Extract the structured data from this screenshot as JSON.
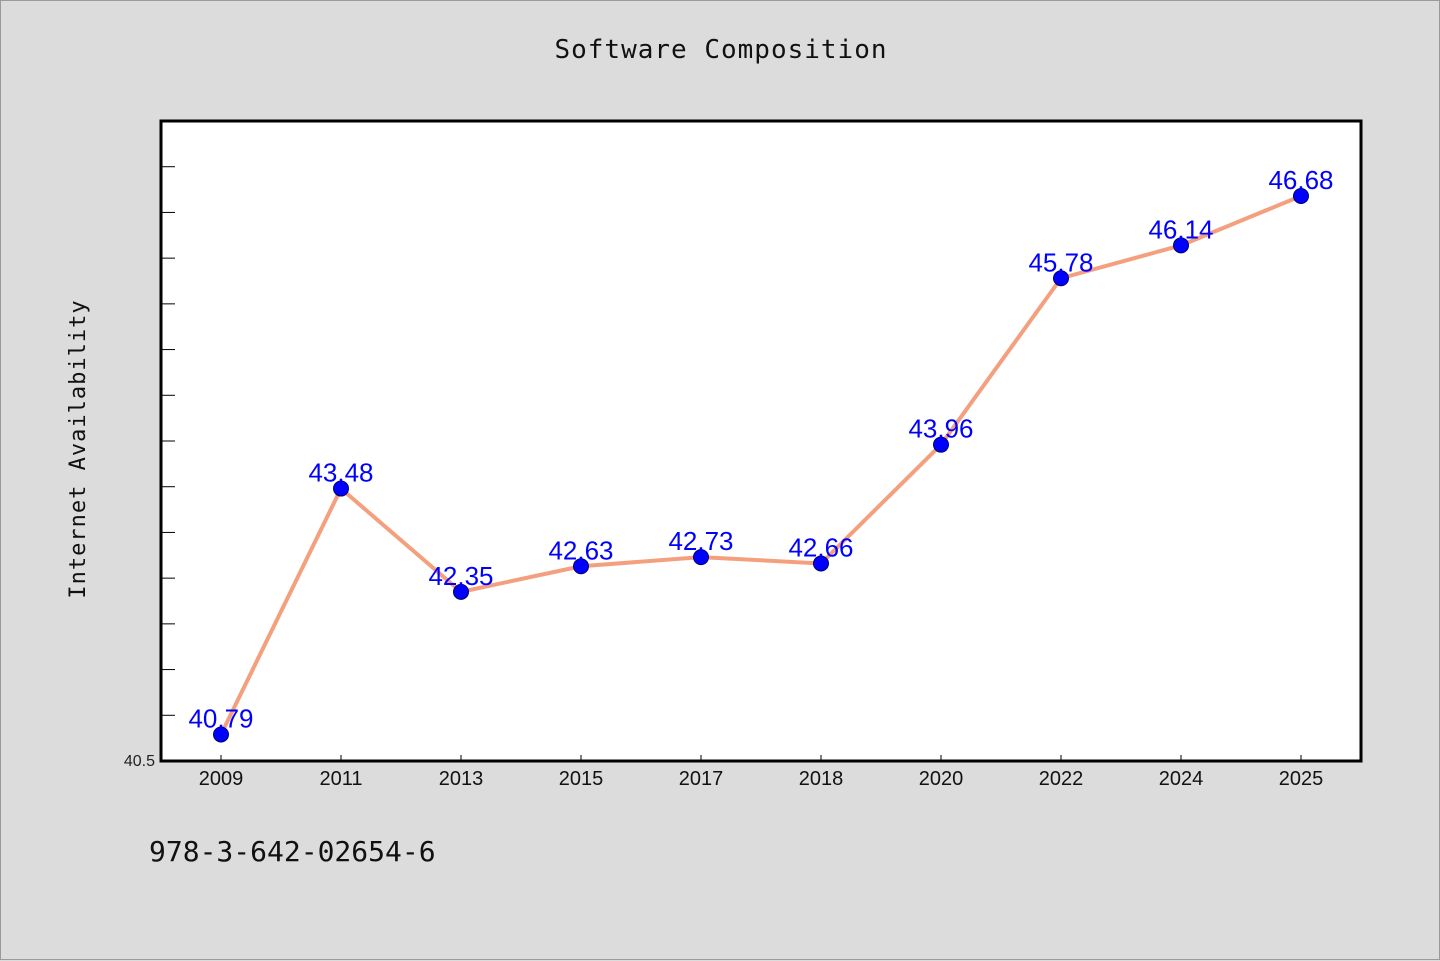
{
  "title": "Software Composition",
  "footer_text": "978-3-642-02654-6",
  "colors": {
    "background": "#dcdcdc",
    "plot_background": "#ffffff",
    "line": "#f4a07f",
    "marker": "#0000ff",
    "data_label": "#0000ff"
  },
  "chart_data": {
    "type": "line",
    "title": "Software Composition",
    "xlabel": "",
    "ylabel": "Internet Availability",
    "categories": [
      "2009",
      "2011",
      "2013",
      "2015",
      "2017",
      "2018",
      "2020",
      "2022",
      "2024",
      "2025"
    ],
    "series": [
      {
        "values": [
          40.79,
          43.48,
          42.35,
          42.63,
          42.73,
          42.66,
          43.96,
          45.78,
          46.14,
          46.68
        ]
      }
    ],
    "data_labels": [
      "40.79",
      "43.48",
      "42.35",
      "42.63",
      "42.73",
      "42.66",
      "43.96",
      "45.78",
      "46.14",
      "46.68"
    ],
    "y_tick_labels": [
      "40.5"
    ],
    "ylim": [
      40.5,
      47.5
    ],
    "grid": false,
    "legend": "none"
  }
}
